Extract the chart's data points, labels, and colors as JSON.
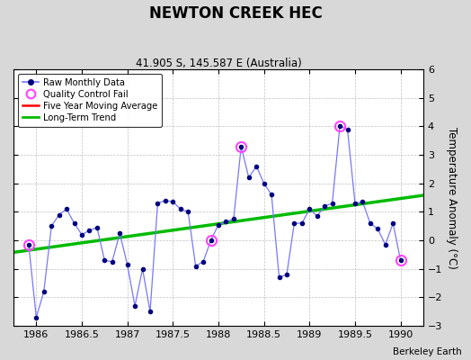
{
  "title": "NEWTON CREEK HEC",
  "subtitle": "41.905 S, 145.587 E (Australia)",
  "ylabel": "Temperature Anomaly (°C)",
  "credit": "Berkeley Earth",
  "xlim": [
    1985.75,
    1990.25
  ],
  "ylim": [
    -3,
    6
  ],
  "yticks": [
    -3,
    -2,
    -1,
    0,
    1,
    2,
    3,
    4,
    5,
    6
  ],
  "xticks": [
    1986,
    1986.5,
    1987,
    1987.5,
    1988,
    1988.5,
    1989,
    1989.5,
    1990
  ],
  "xtick_labels": [
    "1986",
    "1986.5",
    "1987",
    "1987.5",
    "1988",
    "1988.5",
    "1989",
    "1989.5",
    "1990"
  ],
  "raw_x": [
    1985.917,
    1986.0,
    1986.083,
    1986.167,
    1986.25,
    1986.333,
    1986.417,
    1986.5,
    1986.583,
    1986.667,
    1986.75,
    1986.833,
    1986.917,
    1987.0,
    1987.083,
    1987.167,
    1987.25,
    1987.333,
    1987.417,
    1987.5,
    1987.583,
    1987.667,
    1987.75,
    1987.833,
    1987.917,
    1988.0,
    1988.083,
    1988.167,
    1988.25,
    1988.333,
    1988.417,
    1988.5,
    1988.583,
    1988.667,
    1988.75,
    1988.833,
    1988.917,
    1989.0,
    1989.083,
    1989.167,
    1989.25,
    1989.333,
    1989.417,
    1989.5,
    1989.583,
    1989.667,
    1989.75,
    1989.833,
    1989.917,
    1990.0
  ],
  "raw_y": [
    -0.15,
    -2.7,
    -1.8,
    0.5,
    0.9,
    1.1,
    0.6,
    0.2,
    0.35,
    0.45,
    -0.7,
    -0.75,
    0.25,
    -0.85,
    -2.3,
    -1.0,
    -2.5,
    1.3,
    1.4,
    1.35,
    1.1,
    1.0,
    -0.9,
    -0.75,
    0.0,
    0.55,
    0.65,
    0.75,
    3.3,
    2.2,
    2.6,
    2.0,
    1.6,
    -1.3,
    -1.2,
    0.6,
    0.6,
    1.1,
    0.85,
    1.2,
    1.3,
    4.0,
    3.9,
    1.3,
    1.35,
    0.6,
    0.4,
    -0.15,
    0.6,
    -0.7
  ],
  "qc_fail_x": [
    1985.917,
    1987.917,
    1988.25,
    1989.333,
    1990.0
  ],
  "qc_fail_y": [
    -0.15,
    0.0,
    3.3,
    4.0,
    -0.7
  ],
  "trend_x": [
    1985.75,
    1990.25
  ],
  "trend_y": [
    -0.42,
    1.58
  ],
  "raw_line_color": "#7777ff",
  "raw_marker_color": "#000080",
  "qc_color": "#ff44ff",
  "trend_color": "#00bb00",
  "ma_color": "#ff0000",
  "bg_color": "#d8d8d8",
  "plot_bg_color": "#ffffff",
  "grid_color": "#b0b0b0"
}
